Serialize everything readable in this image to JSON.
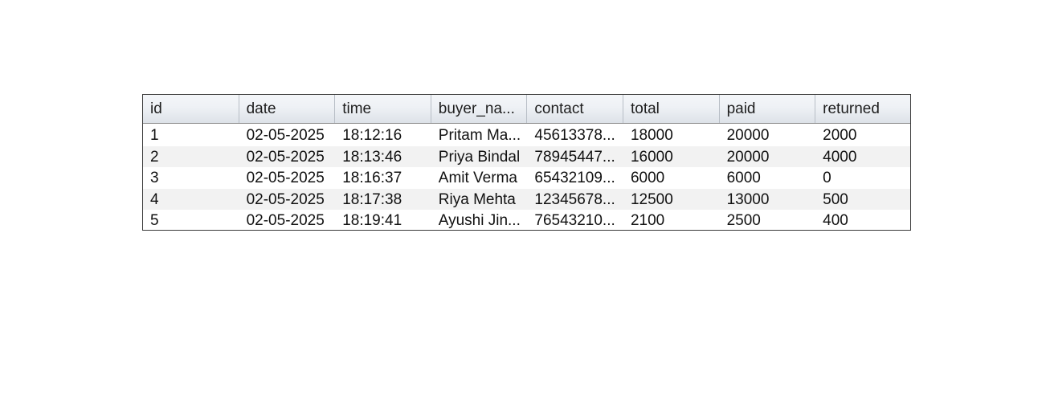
{
  "table": {
    "columns": [
      "id",
      "date",
      "time",
      "buyer_na...",
      "contact",
      "total",
      "paid",
      "returned"
    ],
    "rows": [
      [
        "1",
        "02-05-2025",
        "18:12:16",
        "Pritam Ma...",
        "45613378...",
        "18000",
        "20000",
        "2000"
      ],
      [
        "2",
        "02-05-2025",
        "18:13:46",
        "Priya Bindal",
        "78945447...",
        "16000",
        "20000",
        "4000"
      ],
      [
        "3",
        "02-05-2025",
        "18:16:37",
        "Amit Verma",
        "65432109...",
        "6000",
        "6000",
        "0"
      ],
      [
        "4",
        "02-05-2025",
        "18:17:38",
        "Riya Mehta",
        "12345678...",
        "12500",
        "13000",
        "500"
      ],
      [
        "5",
        "02-05-2025",
        "18:19:41",
        "Ayushi Jin...",
        "76543210...",
        "2100",
        "2500",
        "400"
      ]
    ]
  },
  "colors": {
    "border": "#3a3a3a",
    "header_bg": "#e9ecf0",
    "alt_row_bg": "#f2f2f2",
    "text": "#111111"
  }
}
